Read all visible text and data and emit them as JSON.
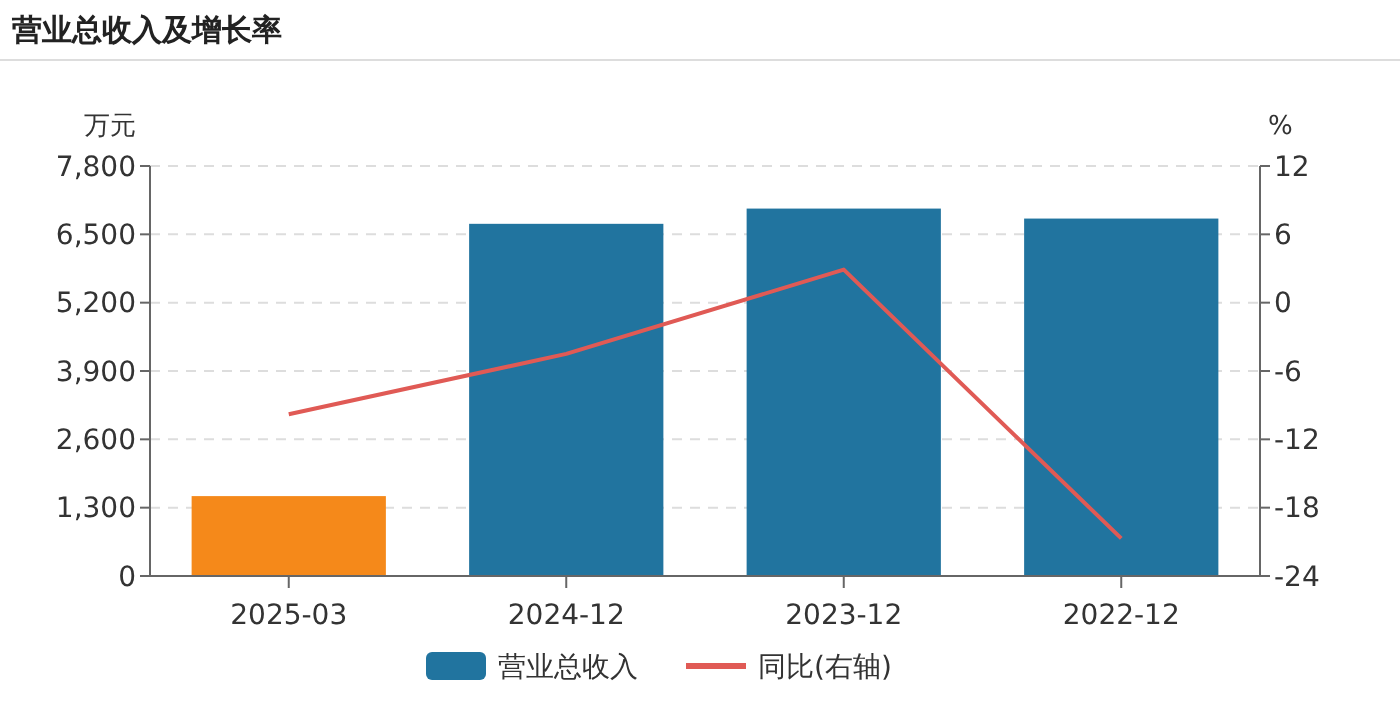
{
  "chart_data": {
    "type": "bar",
    "title": "营业总收入及增长率",
    "categories": [
      "2025-03",
      "2024-12",
      "2023-12",
      "2022-12"
    ],
    "ylabel": "万元",
    "y2label": "%",
    "series": [
      {
        "name": "营业总收入",
        "color": "#21749f",
        "colors": [
          "#f5891a",
          "#21749f",
          "#21749f",
          "#21749f"
        ],
        "values": [
          1520,
          6700,
          6990,
          6800
        ]
      },
      {
        "name": "同比(右轴)",
        "type": "line",
        "axis": "y2",
        "color": "#e05a55",
        "values": [
          -9.8,
          -4.5,
          2.9,
          -20.7
        ]
      }
    ],
    "ylim": [
      0,
      7800
    ],
    "yticks": [
      {
        "value": 0,
        "label": "0"
      },
      {
        "value": 1300,
        "label": "1,300"
      },
      {
        "value": 2600,
        "label": "2,600"
      },
      {
        "value": 3900,
        "label": "3,900"
      },
      {
        "value": 5200,
        "label": "5,200"
      },
      {
        "value": 6500,
        "label": "6,500"
      },
      {
        "value": 7800,
        "label": "7,800"
      }
    ],
    "y2lim": [
      -24,
      12
    ],
    "y2ticks": [
      -24,
      -18,
      -12,
      -6,
      0,
      6,
      12
    ],
    "grid": "y",
    "legend": "bottom",
    "marker": "none",
    "line_style": "solid"
  }
}
